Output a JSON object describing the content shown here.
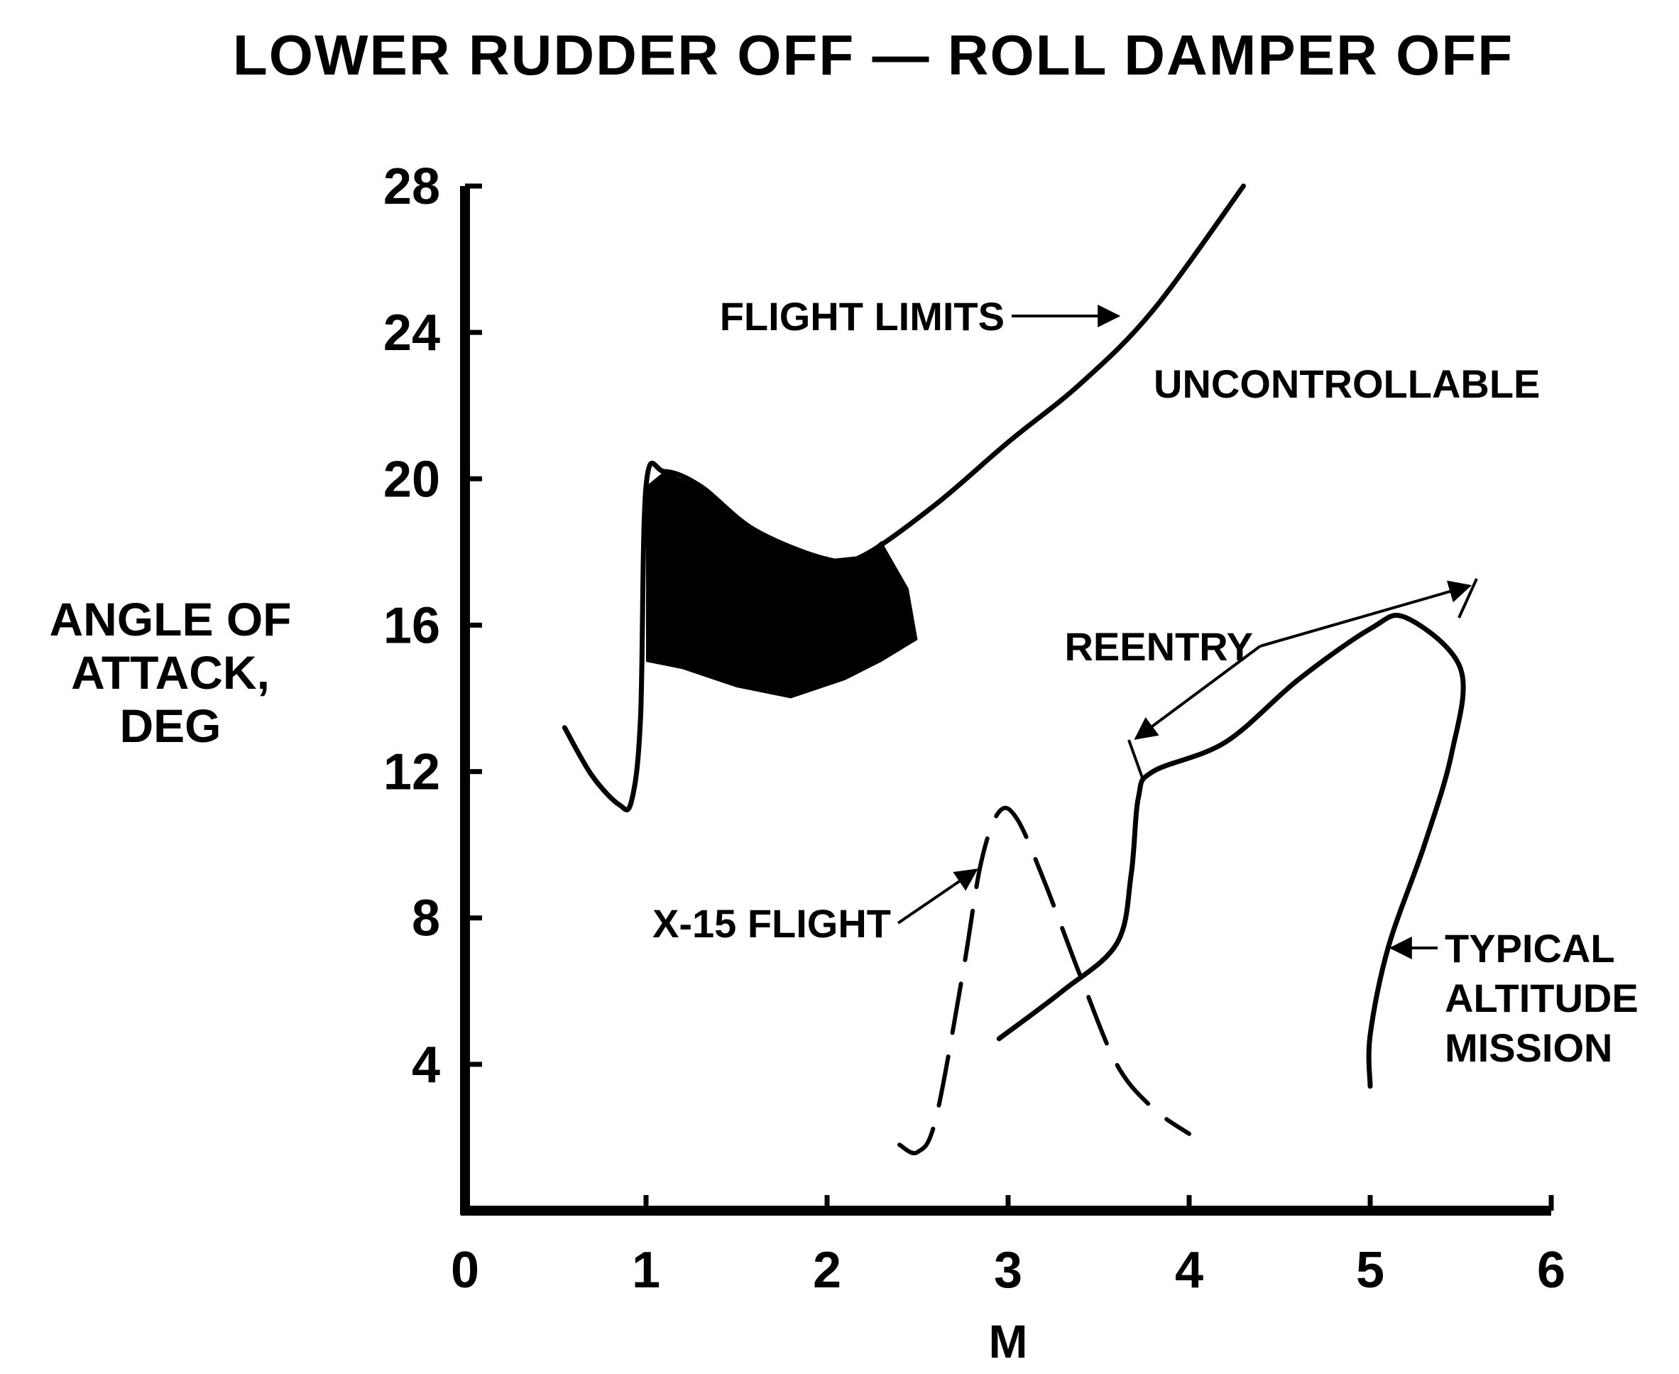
{
  "chart_data": {
    "type": "line",
    "title": "LOWER RUDDER OFF — ROLL DAMPER OFF",
    "xlabel": "M",
    "ylabel_lines": [
      "ANGLE OF",
      "ATTACK,",
      "DEG"
    ],
    "xlim": [
      0,
      6
    ],
    "ylim": [
      0,
      28
    ],
    "xticks": [
      "0",
      "1",
      "2",
      "3",
      "4",
      "5",
      "6"
    ],
    "yticks": [
      "4",
      "8",
      "12",
      "16",
      "20",
      "24",
      "28"
    ],
    "grid": false,
    "regions": {
      "uncontrollable_label": "UNCONTROLLABLE",
      "upper_boundary": [
        [
          1.0,
          19.8
        ],
        [
          1.1,
          20.2
        ],
        [
          1.3,
          19.8
        ],
        [
          1.6,
          18.6
        ],
        [
          2.0,
          17.8
        ],
        [
          2.2,
          17.9
        ],
        [
          2.6,
          19.3
        ],
        [
          3.0,
          21.0
        ],
        [
          3.4,
          22.6
        ],
        [
          3.8,
          24.6
        ],
        [
          4.3,
          28.0
        ]
      ],
      "lower_boundary": [
        [
          1.0,
          15.0
        ],
        [
          1.2,
          14.8
        ],
        [
          1.5,
          14.3
        ],
        [
          1.8,
          14.0
        ],
        [
          2.1,
          14.5
        ],
        [
          2.3,
          15.0
        ]
      ]
    },
    "series": [
      {
        "name": "FLIGHT LIMITS",
        "style": "solid",
        "points": [
          [
            0.55,
            13.2
          ],
          [
            0.7,
            11.9
          ],
          [
            0.85,
            11.1
          ],
          [
            0.92,
            11.2
          ],
          [
            0.97,
            13.5
          ],
          [
            1.0,
            19.8
          ],
          [
            1.1,
            20.2
          ],
          [
            1.3,
            19.8
          ],
          [
            1.6,
            18.6
          ],
          [
            2.0,
            17.8
          ],
          [
            2.2,
            17.9
          ],
          [
            2.6,
            19.3
          ],
          [
            3.0,
            21.0
          ],
          [
            3.4,
            22.6
          ],
          [
            3.8,
            24.6
          ],
          [
            4.3,
            28.0
          ]
        ]
      },
      {
        "name": "X-15 FLIGHT",
        "style": "dashed",
        "points": [
          [
            2.4,
            1.8
          ],
          [
            2.5,
            1.6
          ],
          [
            2.6,
            2.5
          ],
          [
            2.75,
            6.5
          ],
          [
            2.85,
            9.5
          ],
          [
            2.95,
            10.9
          ],
          [
            3.05,
            10.7
          ],
          [
            3.2,
            9.0
          ],
          [
            3.4,
            6.4
          ],
          [
            3.6,
            4.0
          ],
          [
            3.8,
            2.8
          ],
          [
            4.0,
            2.1
          ]
        ]
      },
      {
        "name": "REENTRY",
        "style": "solid",
        "points": [
          [
            2.95,
            4.7
          ],
          [
            3.3,
            6.0
          ],
          [
            3.6,
            7.3
          ],
          [
            3.68,
            9.2
          ],
          [
            3.72,
            11.3
          ],
          [
            3.8,
            12.0
          ],
          [
            4.2,
            12.8
          ],
          [
            4.6,
            14.5
          ],
          [
            5.0,
            15.9
          ],
          [
            5.2,
            16.2
          ],
          [
            5.5,
            14.8
          ],
          [
            5.45,
            12.5
          ],
          [
            5.3,
            10.0
          ],
          [
            5.1,
            7.2
          ],
          [
            5.0,
            4.8
          ],
          [
            5.0,
            3.4
          ]
        ]
      }
    ],
    "annotations": {
      "flight_limits": "FLIGHT LIMITS",
      "reentry": "REENTRY",
      "x15_flight": "X-15 FLIGHT",
      "typical_altitude_mission_lines": [
        "TYPICAL",
        "ALTITUDE",
        "MISSION"
      ]
    }
  }
}
